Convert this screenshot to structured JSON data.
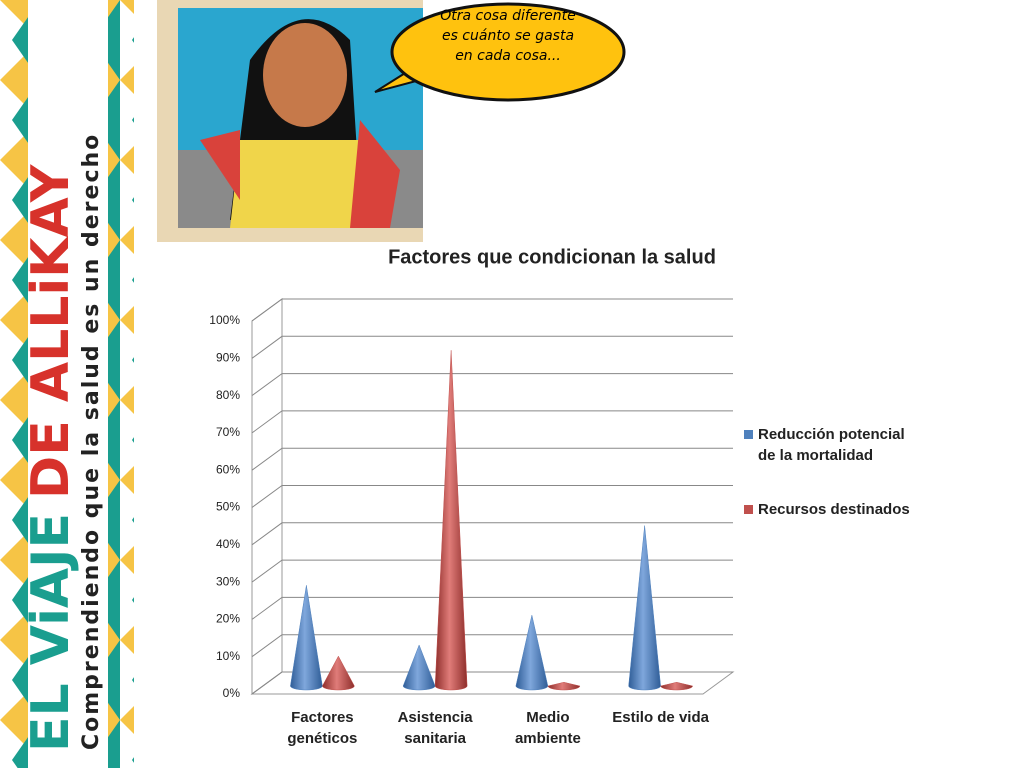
{
  "banner": {
    "title_parts": [
      "EL ViAJE",
      "DE ALLiKAY"
    ],
    "subtitle": "Comprendiendo que la salud es un derecho"
  },
  "speech_bubble": "Otra cosa diferente es cuánto se gasta en cada cosa...",
  "chart_data": {
    "type": "cone3d",
    "title": "Factores que condicionan la salud",
    "categories": [
      "Factores genéticos",
      "Asistencia sanitaria",
      "Medio ambiente",
      "Estilo de vida"
    ],
    "series": [
      {
        "name": "Reducción potencial de la mortalidad",
        "color": "#4f81bd",
        "values": [
          27,
          11,
          19,
          43
        ]
      },
      {
        "name": "Recursos destinados",
        "color": "#c0504d",
        "values": [
          8,
          90,
          1,
          1
        ]
      }
    ],
    "ylim": [
      0,
      100
    ],
    "yticks": [
      {
        "value": 0,
        "label": "0%"
      },
      {
        "value": 10,
        "label": "10%"
      },
      {
        "value": 20,
        "label": "20%"
      },
      {
        "value": 30,
        "label": "30%"
      },
      {
        "value": 40,
        "label": "40%"
      },
      {
        "value": 50,
        "label": "50%"
      },
      {
        "value": 60,
        "label": "60%"
      },
      {
        "value": 70,
        "label": "70%"
      },
      {
        "value": 80,
        "label": "80%"
      },
      {
        "value": 90,
        "label": "90%"
      },
      {
        "value": 100,
        "label": "100%"
      }
    ],
    "grid": true,
    "legend": "right"
  }
}
